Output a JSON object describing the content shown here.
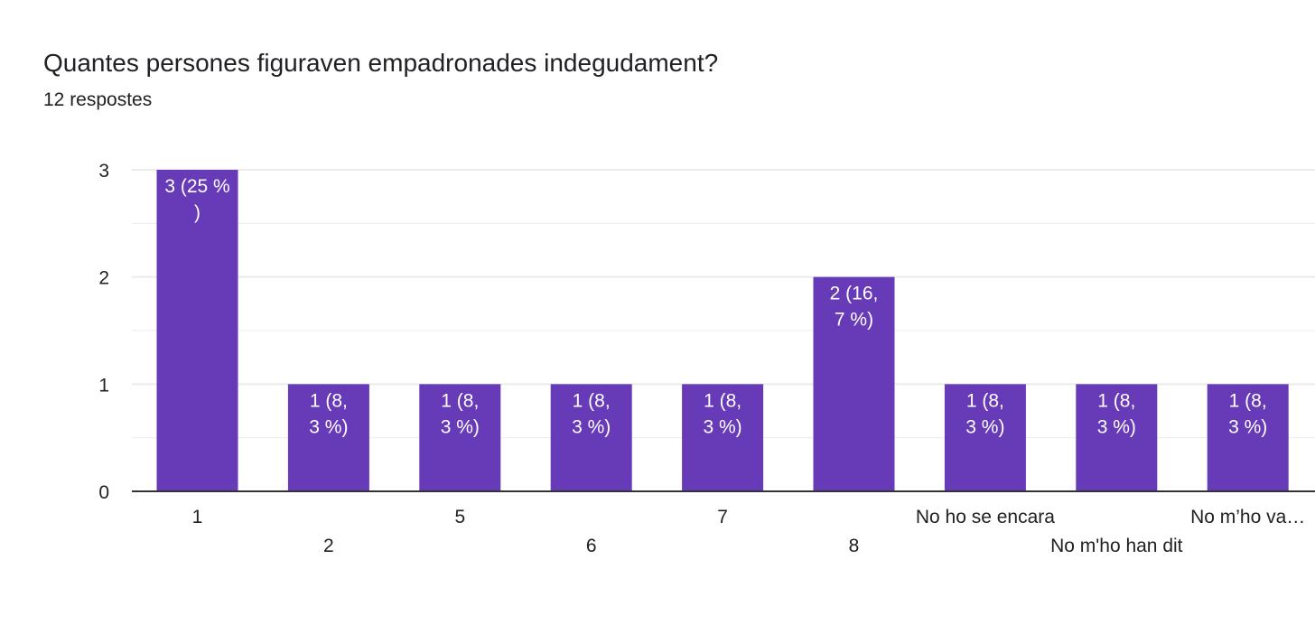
{
  "question": {
    "title": "Quantes persones figuraven empadronades indegudament?",
    "responses": "12 respostes"
  },
  "colors": {
    "bar": "#673ab7",
    "bar_label": "#ffffff",
    "gridline": "#ebebeb",
    "axis": "#333333",
    "text": "#202124"
  },
  "chart_data": {
    "type": "bar",
    "title": "Quantes persones figuraven empadronades indegudament?",
    "xlabel": "",
    "ylabel": "",
    "ylim": [
      0,
      3
    ],
    "yticks": [
      0,
      1,
      2,
      3
    ],
    "grid": true,
    "legend": "none",
    "categories": [
      "1",
      "2",
      "5",
      "6",
      "7",
      "8",
      "No ho se encara",
      "No m'ho han dit",
      "No m’ho va…"
    ],
    "values": [
      3,
      1,
      1,
      1,
      1,
      2,
      1,
      1,
      1
    ],
    "data_labels": [
      [
        "3 (25 %",
        ")"
      ],
      [
        "1 (8,",
        "3 %)"
      ],
      [
        "1 (8,",
        "3 %)"
      ],
      [
        "1 (8,",
        "3 %)"
      ],
      [
        "1 (8,",
        "3 %)"
      ],
      [
        "2 (16,",
        "7 %)"
      ],
      [
        "1 (8,",
        "3 %)"
      ],
      [
        "1 (8,",
        "3 %)"
      ],
      [
        "1 (8,",
        "3 %)"
      ]
    ]
  }
}
